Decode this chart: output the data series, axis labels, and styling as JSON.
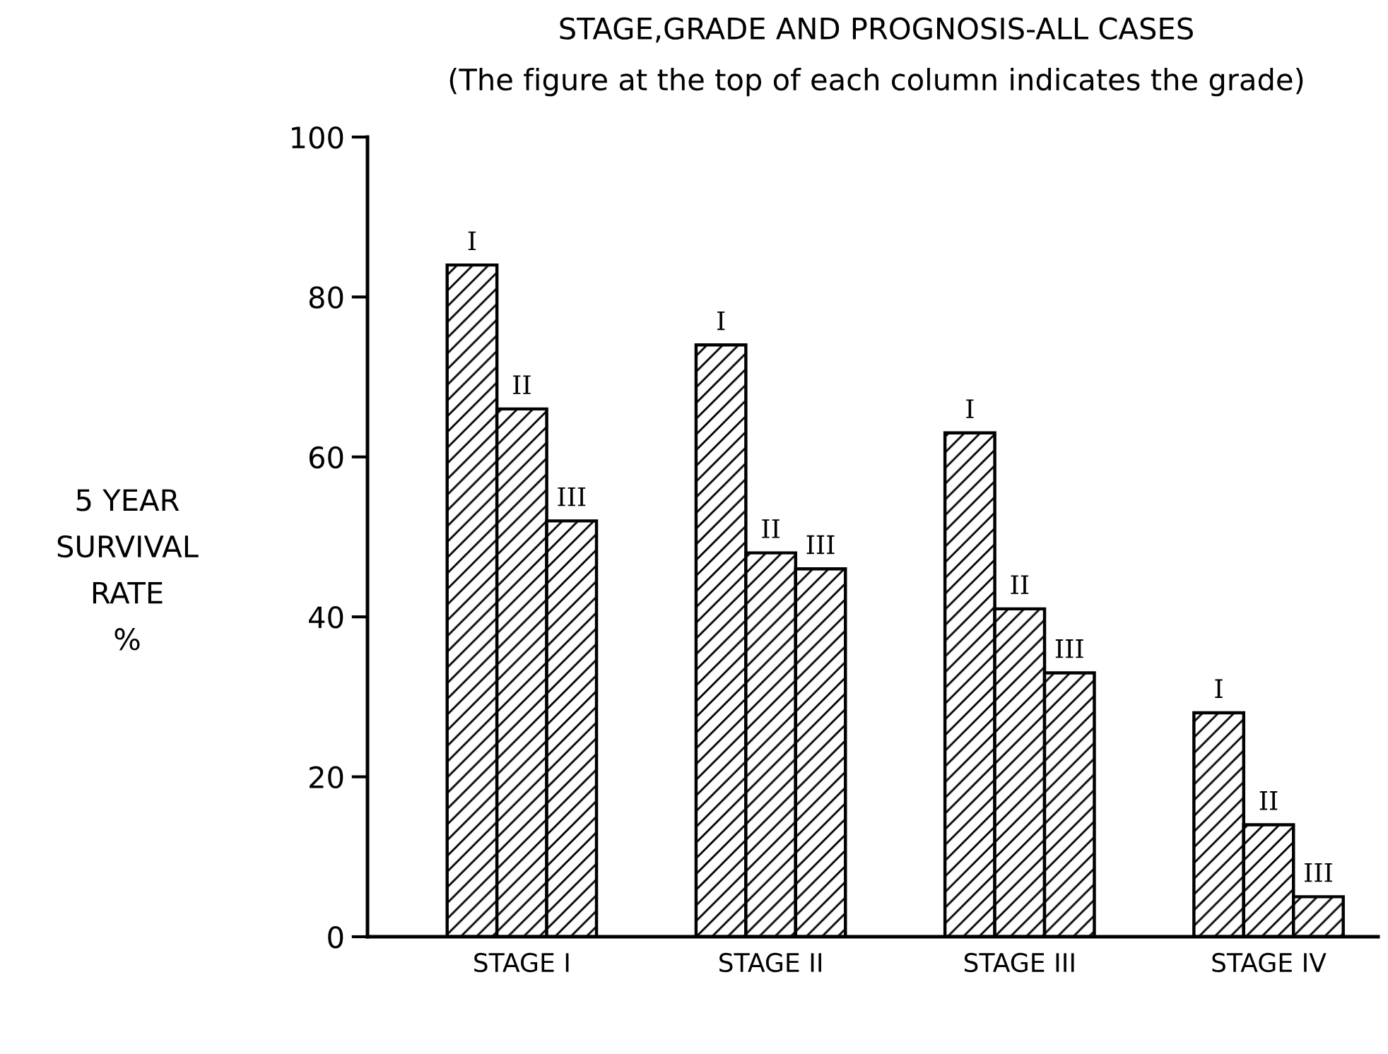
{
  "chart_data": {
    "type": "bar",
    "title": "STAGE,GRADE AND PROGNOSIS-ALL CASES",
    "subtitle": "(The figure at the top of each column indicates the grade)",
    "ylabel": "5 YEAR\nSURVIVAL\nRATE\n%",
    "categories": [
      "STAGE I",
      "STAGE II",
      "STAGE III",
      "STAGE IV"
    ],
    "series": [
      {
        "name": "I",
        "color": "#000000",
        "values": [
          84,
          74,
          63,
          28
        ]
      },
      {
        "name": "II",
        "color": "#000000",
        "values": [
          66,
          48,
          41,
          14
        ]
      },
      {
        "name": "III",
        "color": "#000000",
        "values": [
          52,
          46,
          33,
          5
        ]
      }
    ],
    "ylim": [
      0,
      100
    ],
    "yticks": [
      0,
      20,
      40,
      60,
      80,
      100
    ],
    "grid": false,
    "legend": false
  }
}
